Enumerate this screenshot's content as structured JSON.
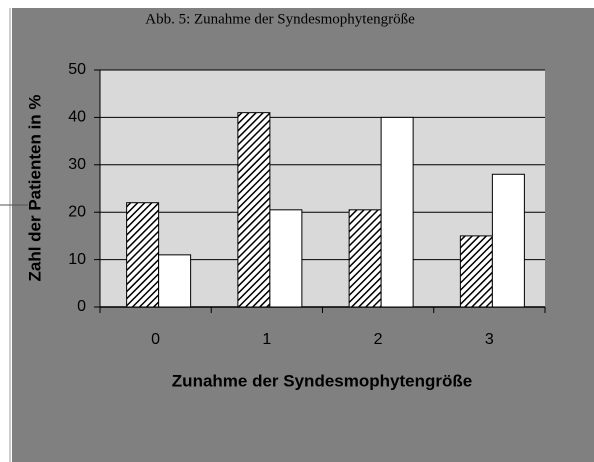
{
  "chart_data": {
    "type": "bar",
    "title": "Abb. 5: Zunahme der Syndesmophytengröße",
    "x_label": "Zunahme der Syndesmophytengröße",
    "y_label": "Zahl der Patienten in %",
    "categories": [
      "0",
      "1",
      "2",
      "3"
    ],
    "series": [
      {
        "color": "#000000",
        "pattern": "hatch",
        "values": [
          22,
          41,
          20.5,
          15
        ]
      },
      {
        "color": "#ffffff",
        "pattern": "solid",
        "values": [
          11,
          20.5,
          40,
          28
        ]
      }
    ],
    "ylim": [
      0,
      50
    ],
    "yticks": [
      0,
      10,
      20,
      30,
      40,
      50
    ],
    "grid": true
  }
}
